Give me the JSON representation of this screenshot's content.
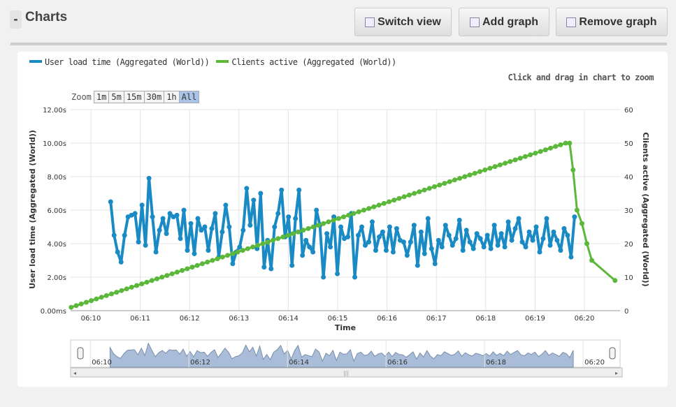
{
  "header": {
    "collapse": "-",
    "title": "Charts",
    "buttons": [
      {
        "label": "Switch view",
        "icon": "table-icon"
      },
      {
        "label": "Add graph",
        "icon": "chart-add-icon"
      },
      {
        "label": "Remove graph",
        "icon": "chart-remove-icon"
      }
    ]
  },
  "legend": [
    {
      "label": "User load time (Aggregated (World))",
      "color": "#1a8ac4"
    },
    {
      "label": "Clients active (Aggregated (World))",
      "color": "#5bb83a"
    }
  ],
  "hint": "Click and drag in chart to zoom",
  "zoom": {
    "label": "Zoom",
    "options": [
      "1m",
      "5m",
      "15m",
      "30m",
      "1h",
      "All"
    ],
    "selected": "All"
  },
  "chart_data": {
    "type": "line",
    "xlabel": "Time",
    "x_ticks": [
      "06:10",
      "06:11",
      "06:12",
      "06:13",
      "06:14",
      "06:15",
      "06:16",
      "06:17",
      "06:18",
      "06:19",
      "06:20"
    ],
    "x_range_minutes": [
      9.6,
      20.75
    ],
    "y_left": {
      "label": "User load time (Aggregated (World))",
      "ticks": [
        "0.00ms",
        "2.00s",
        "4.00s",
        "6.00s",
        "8.00s",
        "10.00s",
        "12.00s"
      ],
      "range": [
        0,
        12
      ]
    },
    "y_right": {
      "label": "Clients active (Aggregated (World))",
      "ticks": [
        "0",
        "10",
        "20",
        "30",
        "40",
        "50",
        "60"
      ],
      "range": [
        0,
        60
      ]
    },
    "series": [
      {
        "name": "User load time (Aggregated (World))",
        "axis": "left",
        "color": "#1a8ac4",
        "x_start": 10.4,
        "x_end": 19.8,
        "values": [
          6.5,
          4.5,
          3.5,
          2.9,
          4.5,
          5.6,
          5.7,
          5.8,
          4.1,
          6.3,
          3.9,
          7.9,
          5.6,
          3.5,
          4.8,
          5.5,
          4.6,
          5.8,
          5.6,
          5.7,
          4.3,
          6.0,
          3.6,
          5.2,
          3.4,
          5.5,
          4.8,
          5.0,
          3.6,
          4.9,
          5.8,
          3.2,
          4.7,
          6.3,
          5.0,
          2.8,
          3.5,
          3.8,
          4.8,
          7.3,
          5.1,
          6.6,
          3.7,
          7.0,
          2.6,
          4.2,
          2.5,
          5.0,
          5.8,
          7.2,
          4.4,
          5.6,
          2.7,
          5.5,
          7.2,
          3.3,
          4.2,
          3.8,
          3.5,
          6.0,
          5.1,
          2.0,
          4.6,
          3.8,
          5.6,
          2.2,
          5.0,
          4.3,
          4.4,
          5.8,
          2.0,
          4.5,
          5.0,
          3.9,
          4.1,
          5.3,
          3.6,
          4.4,
          4.7,
          3.6,
          5.0,
          3.5,
          4.9,
          4.2,
          4.1,
          3.3,
          4.1,
          5.1,
          2.7,
          4.7,
          3.4,
          5.5,
          3.7,
          2.8,
          4.2,
          3.8,
          5.1,
          4.5,
          3.9,
          4.3,
          5.4,
          3.6,
          4.8,
          4.1,
          3.7,
          4.6,
          4.3,
          3.8,
          4.5,
          3.7,
          5.1,
          3.9,
          4.6,
          3.8,
          5.3,
          4.2,
          4.9,
          5.5,
          4.1,
          3.8,
          4.7,
          4.2,
          5.0,
          3.5,
          4.3,
          5.5,
          3.9,
          4.7,
          4.2,
          3.6,
          4.9,
          4.5,
          3.2,
          5.6
        ]
      },
      {
        "name": "Clients active (Aggregated (World))",
        "axis": "right",
        "color": "#5bb83a",
        "x_start": 9.6,
        "x_end": 19.62,
        "values": [
          1,
          1.5,
          2,
          2.5,
          3,
          3.5,
          4,
          4.5,
          5,
          5.5,
          6,
          6.5,
          7,
          7.5,
          8,
          8.5,
          9,
          9.5,
          10,
          10.5,
          11,
          11.5,
          12,
          12.5,
          13,
          13.5,
          14,
          14.5,
          15,
          15.5,
          16,
          16.5,
          17,
          17.5,
          18,
          18.5,
          19,
          19.5,
          20,
          20.5,
          21,
          21.5,
          22,
          22.5,
          23,
          23.5,
          24,
          24.5,
          25,
          25.5,
          26,
          26.5,
          27,
          27.5,
          28,
          28.5,
          29,
          29.5,
          30,
          30.5,
          31,
          31.5,
          32,
          32.5,
          33,
          33.5,
          34,
          34.5,
          35,
          35.5,
          36,
          36.5,
          37,
          37.5,
          38,
          38.5,
          39,
          39.5,
          40,
          40.5,
          41,
          41.5,
          42,
          42.5,
          43,
          43.5,
          44,
          44.5,
          45,
          45.5,
          46,
          46.5,
          47,
          47.5,
          48,
          48.5,
          49,
          49.5,
          50
        ],
        "tail": [
          [
            19.7,
            50
          ],
          [
            19.77,
            42
          ],
          [
            19.85,
            30
          ],
          [
            19.95,
            26
          ],
          [
            20.05,
            20
          ],
          [
            20.15,
            15
          ],
          [
            20.62,
            9
          ]
        ]
      }
    ]
  },
  "navigator": {
    "ticks": [
      "06:10",
      "06:12",
      "06:14",
      "06:16",
      "06:18",
      "06:20"
    ]
  }
}
